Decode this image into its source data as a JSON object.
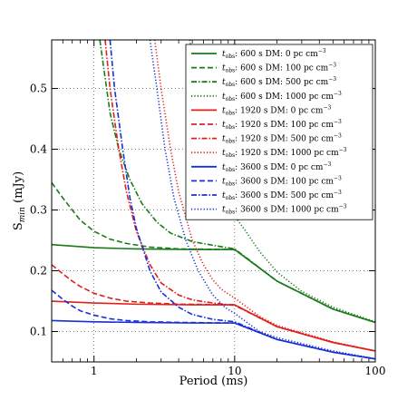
{
  "chart_data": {
    "type": "line",
    "xlabel": "Period (ms)",
    "ylabel_main": "S",
    "ylabel_sub": "min",
    "ylabel_unit": " (mJy)",
    "xscale": "log",
    "xlim": [
      0.5,
      100
    ],
    "ylim": [
      0.05,
      0.58
    ],
    "x_ticks": [
      {
        "value": 1,
        "label": "1"
      },
      {
        "value": 10,
        "label": "10"
      },
      {
        "value": 100,
        "label": "100"
      }
    ],
    "y_ticks": [
      {
        "value": 0.1,
        "label": "0.1"
      },
      {
        "value": 0.2,
        "label": "0.2"
      },
      {
        "value": 0.3,
        "label": "0.3"
      },
      {
        "value": 0.4,
        "label": "0.4"
      },
      {
        "value": 0.5,
        "label": "0.5"
      }
    ],
    "grid": true,
    "legend_placement": "top-right",
    "legend_t_symbol": "t",
    "legend_t_sub": "obs",
    "legend_unit_sup": "−3",
    "series": [
      {
        "name_rest": ": 600 s DM: 0 pc cm",
        "color": "#1a7a1a",
        "dash": "solid",
        "points": [
          [
            0.5,
            0.243
          ],
          [
            1,
            0.238
          ],
          [
            2,
            0.236
          ],
          [
            5,
            0.235
          ],
          [
            10,
            0.235
          ],
          [
            20,
            0.183
          ],
          [
            50,
            0.137
          ],
          [
            100,
            0.115
          ]
        ]
      },
      {
        "name_rest": ": 600 s DM: 100 pc cm",
        "color": "#1a7a1a",
        "dash": "dashed",
        "points": [
          [
            0.5,
            0.345
          ],
          [
            0.6,
            0.32
          ],
          [
            0.7,
            0.3
          ],
          [
            0.8,
            0.283
          ],
          [
            1,
            0.265
          ],
          [
            1.3,
            0.252
          ],
          [
            1.7,
            0.245
          ],
          [
            2.5,
            0.239
          ],
          [
            4,
            0.236
          ],
          [
            10,
            0.235
          ],
          [
            20,
            0.183
          ],
          [
            50,
            0.137
          ],
          [
            100,
            0.115
          ]
        ]
      },
      {
        "name_rest": ": 600 s DM: 500 pc cm",
        "color": "#1a7a1a",
        "dash": "dashdot",
        "points": [
          [
            1.1,
            0.58
          ],
          [
            1.3,
            0.46
          ],
          [
            1.5,
            0.4
          ],
          [
            1.8,
            0.35
          ],
          [
            2.2,
            0.31
          ],
          [
            2.8,
            0.28
          ],
          [
            3.5,
            0.262
          ],
          [
            5,
            0.248
          ],
          [
            7,
            0.242
          ],
          [
            10,
            0.236
          ],
          [
            20,
            0.183
          ],
          [
            50,
            0.137
          ],
          [
            100,
            0.115
          ]
        ]
      },
      {
        "name_rest": ": 600 s DM: 1000 pc cm",
        "color": "#1a7a1a",
        "dash": "dotted",
        "points": [
          [
            4.8,
            0.58
          ],
          [
            5,
            0.55
          ],
          [
            5.5,
            0.48
          ],
          [
            6,
            0.43
          ],
          [
            7,
            0.37
          ],
          [
            8,
            0.33
          ],
          [
            9,
            0.305
          ],
          [
            10,
            0.29
          ],
          [
            12,
            0.265
          ],
          [
            15,
            0.232
          ],
          [
            20,
            0.198
          ],
          [
            30,
            0.166
          ],
          [
            50,
            0.14
          ],
          [
            100,
            0.116
          ]
        ]
      },
      {
        "name_rest": ": 1920 s DM: 0 pc cm",
        "color": "#e0201b",
        "dash": "solid",
        "points": [
          [
            0.5,
            0.15
          ],
          [
            1,
            0.147
          ],
          [
            2,
            0.145
          ],
          [
            5,
            0.144
          ],
          [
            10,
            0.144
          ],
          [
            20,
            0.108
          ],
          [
            50,
            0.082
          ],
          [
            100,
            0.068
          ]
        ]
      },
      {
        "name_rest": ": 1920 s DM: 100 pc cm",
        "color": "#e0201b",
        "dash": "dashed",
        "points": [
          [
            0.5,
            0.21
          ],
          [
            0.6,
            0.195
          ],
          [
            0.7,
            0.183
          ],
          [
            0.8,
            0.174
          ],
          [
            1,
            0.163
          ],
          [
            1.3,
            0.155
          ],
          [
            1.7,
            0.15
          ],
          [
            2.5,
            0.147
          ],
          [
            4,
            0.145
          ],
          [
            10,
            0.144
          ],
          [
            20,
            0.108
          ],
          [
            50,
            0.082
          ],
          [
            100,
            0.068
          ]
        ]
      },
      {
        "name_rest": ": 1920 s DM: 500 pc cm",
        "color": "#e0201b",
        "dash": "dashdot",
        "points": [
          [
            1.2,
            0.58
          ],
          [
            1.3,
            0.5
          ],
          [
            1.5,
            0.4
          ],
          [
            1.7,
            0.33
          ],
          [
            2,
            0.265
          ],
          [
            2.5,
            0.21
          ],
          [
            3,
            0.18
          ],
          [
            4,
            0.16
          ],
          [
            5,
            0.152
          ],
          [
            7,
            0.147
          ],
          [
            10,
            0.143
          ],
          [
            20,
            0.108
          ],
          [
            50,
            0.082
          ],
          [
            100,
            0.068
          ]
        ]
      },
      {
        "name_rest": ": 1920 s DM: 1000 pc cm",
        "color": "#e0201b",
        "dash": "dotted",
        "points": [
          [
            2.7,
            0.58
          ],
          [
            3,
            0.5
          ],
          [
            3.5,
            0.4
          ],
          [
            4,
            0.33
          ],
          [
            5,
            0.25
          ],
          [
            6,
            0.21
          ],
          [
            7,
            0.185
          ],
          [
            8,
            0.17
          ],
          [
            10,
            0.155
          ],
          [
            15,
            0.125
          ],
          [
            20,
            0.11
          ],
          [
            50,
            0.083
          ],
          [
            100,
            0.068
          ]
        ]
      },
      {
        "name_rest": ": 3600 s DM: 0 pc cm",
        "color": "#1530d8",
        "dash": "solid",
        "points": [
          [
            0.5,
            0.118
          ],
          [
            1,
            0.116
          ],
          [
            2,
            0.115
          ],
          [
            5,
            0.114
          ],
          [
            10,
            0.114
          ],
          [
            20,
            0.087
          ],
          [
            50,
            0.066
          ],
          [
            100,
            0.055
          ]
        ]
      },
      {
        "name_rest": ": 3600 s DM: 100 pc cm",
        "color": "#1530d8",
        "dash": "dashed",
        "points": [
          [
            0.5,
            0.168
          ],
          [
            0.6,
            0.153
          ],
          [
            0.7,
            0.142
          ],
          [
            0.8,
            0.134
          ],
          [
            1,
            0.127
          ],
          [
            1.3,
            0.121
          ],
          [
            1.7,
            0.118
          ],
          [
            2.5,
            0.116
          ],
          [
            4,
            0.115
          ],
          [
            10,
            0.114
          ],
          [
            20,
            0.087
          ],
          [
            50,
            0.066
          ],
          [
            100,
            0.055
          ]
        ]
      },
      {
        "name_rest": ": 3600 s DM: 500 pc cm",
        "color": "#1530d8",
        "dash": "dashdot",
        "points": [
          [
            1.3,
            0.58
          ],
          [
            1.4,
            0.5
          ],
          [
            1.6,
            0.4
          ],
          [
            1.8,
            0.32
          ],
          [
            2,
            0.27
          ],
          [
            2.5,
            0.2
          ],
          [
            3,
            0.165
          ],
          [
            4,
            0.14
          ],
          [
            5,
            0.128
          ],
          [
            7,
            0.12
          ],
          [
            10,
            0.116
          ],
          [
            20,
            0.087
          ],
          [
            50,
            0.066
          ],
          [
            100,
            0.055
          ]
        ]
      },
      {
        "name_rest": ": 3600 s DM: 1000 pc cm",
        "color": "#1530d8",
        "dash": "dotted",
        "points": [
          [
            2.5,
            0.58
          ],
          [
            2.8,
            0.5
          ],
          [
            3.2,
            0.4
          ],
          [
            3.7,
            0.32
          ],
          [
            4.5,
            0.25
          ],
          [
            5.5,
            0.2
          ],
          [
            7,
            0.16
          ],
          [
            8.5,
            0.14
          ],
          [
            10,
            0.13
          ],
          [
            15,
            0.1
          ],
          [
            20,
            0.09
          ],
          [
            50,
            0.068
          ],
          [
            100,
            0.055
          ]
        ]
      }
    ]
  }
}
